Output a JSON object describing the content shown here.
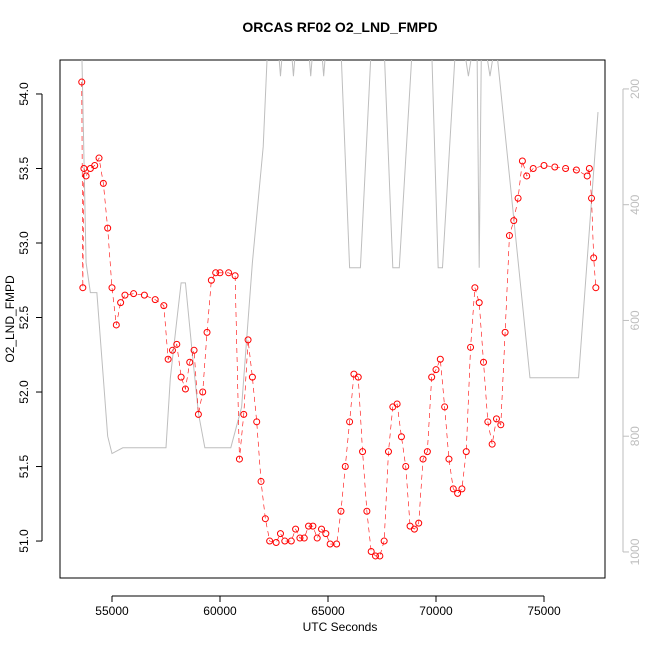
{
  "chart_data": {
    "type": "scatter",
    "title": "ORCAS RF02 O2_LND_FMPD",
    "x_label": "UTC Seconds",
    "y_label": "O2_LND_FMPD",
    "xlim": [
      52593,
      77824
    ],
    "xticks": [
      55000,
      60000,
      65000,
      70000,
      75000
    ],
    "ylim": [
      50.752,
      54.228
    ],
    "yticks": [
      {
        "value": 51.0,
        "label": "51.0"
      },
      {
        "value": 51.5,
        "label": "51.5"
      },
      {
        "value": 52.0,
        "label": "52.0"
      },
      {
        "value": 52.5,
        "label": "52.5"
      },
      {
        "value": 53.0,
        "label": "53.0"
      },
      {
        "value": 53.5,
        "label": "53.5"
      },
      {
        "value": 54.0,
        "label": "54.0"
      }
    ],
    "y2lim": [
      1045,
      150
    ],
    "y2ticks": [
      200,
      400,
      600,
      800,
      1000
    ],
    "series": [
      {
        "type": "scatter",
        "color": "#ff0000",
        "x": [
          53600,
          53650,
          53700,
          53800,
          54000,
          54200,
          54400,
          54600,
          54800,
          55000,
          55200,
          55400,
          55600,
          56000,
          56500,
          57000,
          57400,
          57600,
          57800,
          58000,
          58200,
          58400,
          58600,
          58800,
          59000,
          59200,
          59400,
          59600,
          59800,
          60000,
          60400,
          60700,
          60900,
          61100,
          61300,
          61500,
          61700,
          61900,
          62100,
          62300,
          62600,
          62800,
          63000,
          63300,
          63500,
          63700,
          63900,
          64100,
          64300,
          64500,
          64700,
          64900,
          65100,
          65400,
          65600,
          65800,
          66000,
          66200,
          66400,
          66600,
          66800,
          67000,
          67200,
          67400,
          67600,
          67800,
          68000,
          68200,
          68400,
          68600,
          68800,
          69000,
          69200,
          69400,
          69600,
          69800,
          70000,
          70200,
          70400,
          70600,
          70800,
          71000,
          71200,
          71400,
          71600,
          71800,
          72000,
          72200,
          72400,
          72600,
          72800,
          73000,
          73200,
          73400,
          73600,
          73800,
          74000,
          74200,
          74500,
          75000,
          75500,
          76000,
          76500,
          77000,
          77100,
          77200,
          77300,
          77400
        ],
        "values": [
          54.08,
          52.7,
          53.5,
          53.45,
          53.5,
          53.52,
          53.57,
          53.4,
          53.1,
          52.7,
          52.45,
          52.6,
          52.65,
          52.66,
          52.65,
          52.62,
          52.58,
          52.22,
          52.28,
          52.32,
          52.1,
          52.02,
          52.2,
          52.28,
          51.85,
          52.0,
          52.4,
          52.75,
          52.8,
          52.8,
          52.8,
          52.78,
          51.55,
          51.85,
          52.35,
          52.1,
          51.8,
          51.4,
          51.15,
          51.0,
          50.99,
          51.05,
          51.0,
          51.0,
          51.08,
          51.02,
          51.02,
          51.1,
          51.1,
          51.02,
          51.08,
          51.05,
          50.98,
          50.98,
          51.2,
          51.5,
          51.8,
          52.12,
          52.1,
          51.6,
          51.2,
          50.93,
          50.9,
          50.9,
          51.0,
          51.6,
          51.9,
          51.92,
          51.7,
          51.5,
          51.1,
          51.08,
          51.12,
          51.55,
          51.6,
          52.1,
          52.15,
          52.22,
          51.9,
          51.55,
          51.35,
          51.32,
          51.35,
          51.6,
          52.3,
          52.7,
          52.6,
          52.2,
          51.8,
          51.65,
          51.82,
          51.78,
          52.4,
          53.05,
          53.15,
          53.3,
          53.55,
          53.45,
          53.5,
          53.52,
          53.51,
          53.5,
          53.49,
          53.45,
          53.5,
          53.3,
          52.9,
          52.7
        ]
      },
      {
        "type": "line",
        "axis": "y2",
        "color": "#bebebe",
        "x": [
          53600,
          53800,
          54000,
          54300,
          54600,
          54800,
          55000,
          55500,
          57500,
          57700,
          58000,
          58200,
          58400,
          58700,
          59000,
          59300,
          60500,
          61000,
          61500,
          62000,
          62200,
          62700,
          62800,
          62900,
          63300,
          63400,
          63500,
          64100,
          64200,
          64300,
          64700,
          64800,
          64900,
          65600,
          66000,
          66500,
          67000,
          67600,
          68000,
          68300,
          68900,
          69800,
          70100,
          70300,
          70900,
          71300,
          71500,
          71700,
          71900,
          72000,
          72100,
          72300,
          72500,
          72700,
          72800,
          74350,
          76600,
          77500
        ],
        "values": [
          130,
          500,
          552,
          552,
          700,
          800,
          830,
          820,
          820,
          700,
          600,
          535,
          535,
          650,
          760,
          820,
          820,
          750,
          500,
          300,
          130,
          130,
          178,
          130,
          130,
          178,
          130,
          130,
          178,
          130,
          130,
          178,
          130,
          130,
          509,
          509,
          130,
          130,
          509,
          509,
          130,
          130,
          509,
          509,
          130,
          130,
          178,
          130,
          130,
          509,
          130,
          130,
          178,
          130,
          130,
          699,
          699,
          240
        ]
      }
    ]
  }
}
